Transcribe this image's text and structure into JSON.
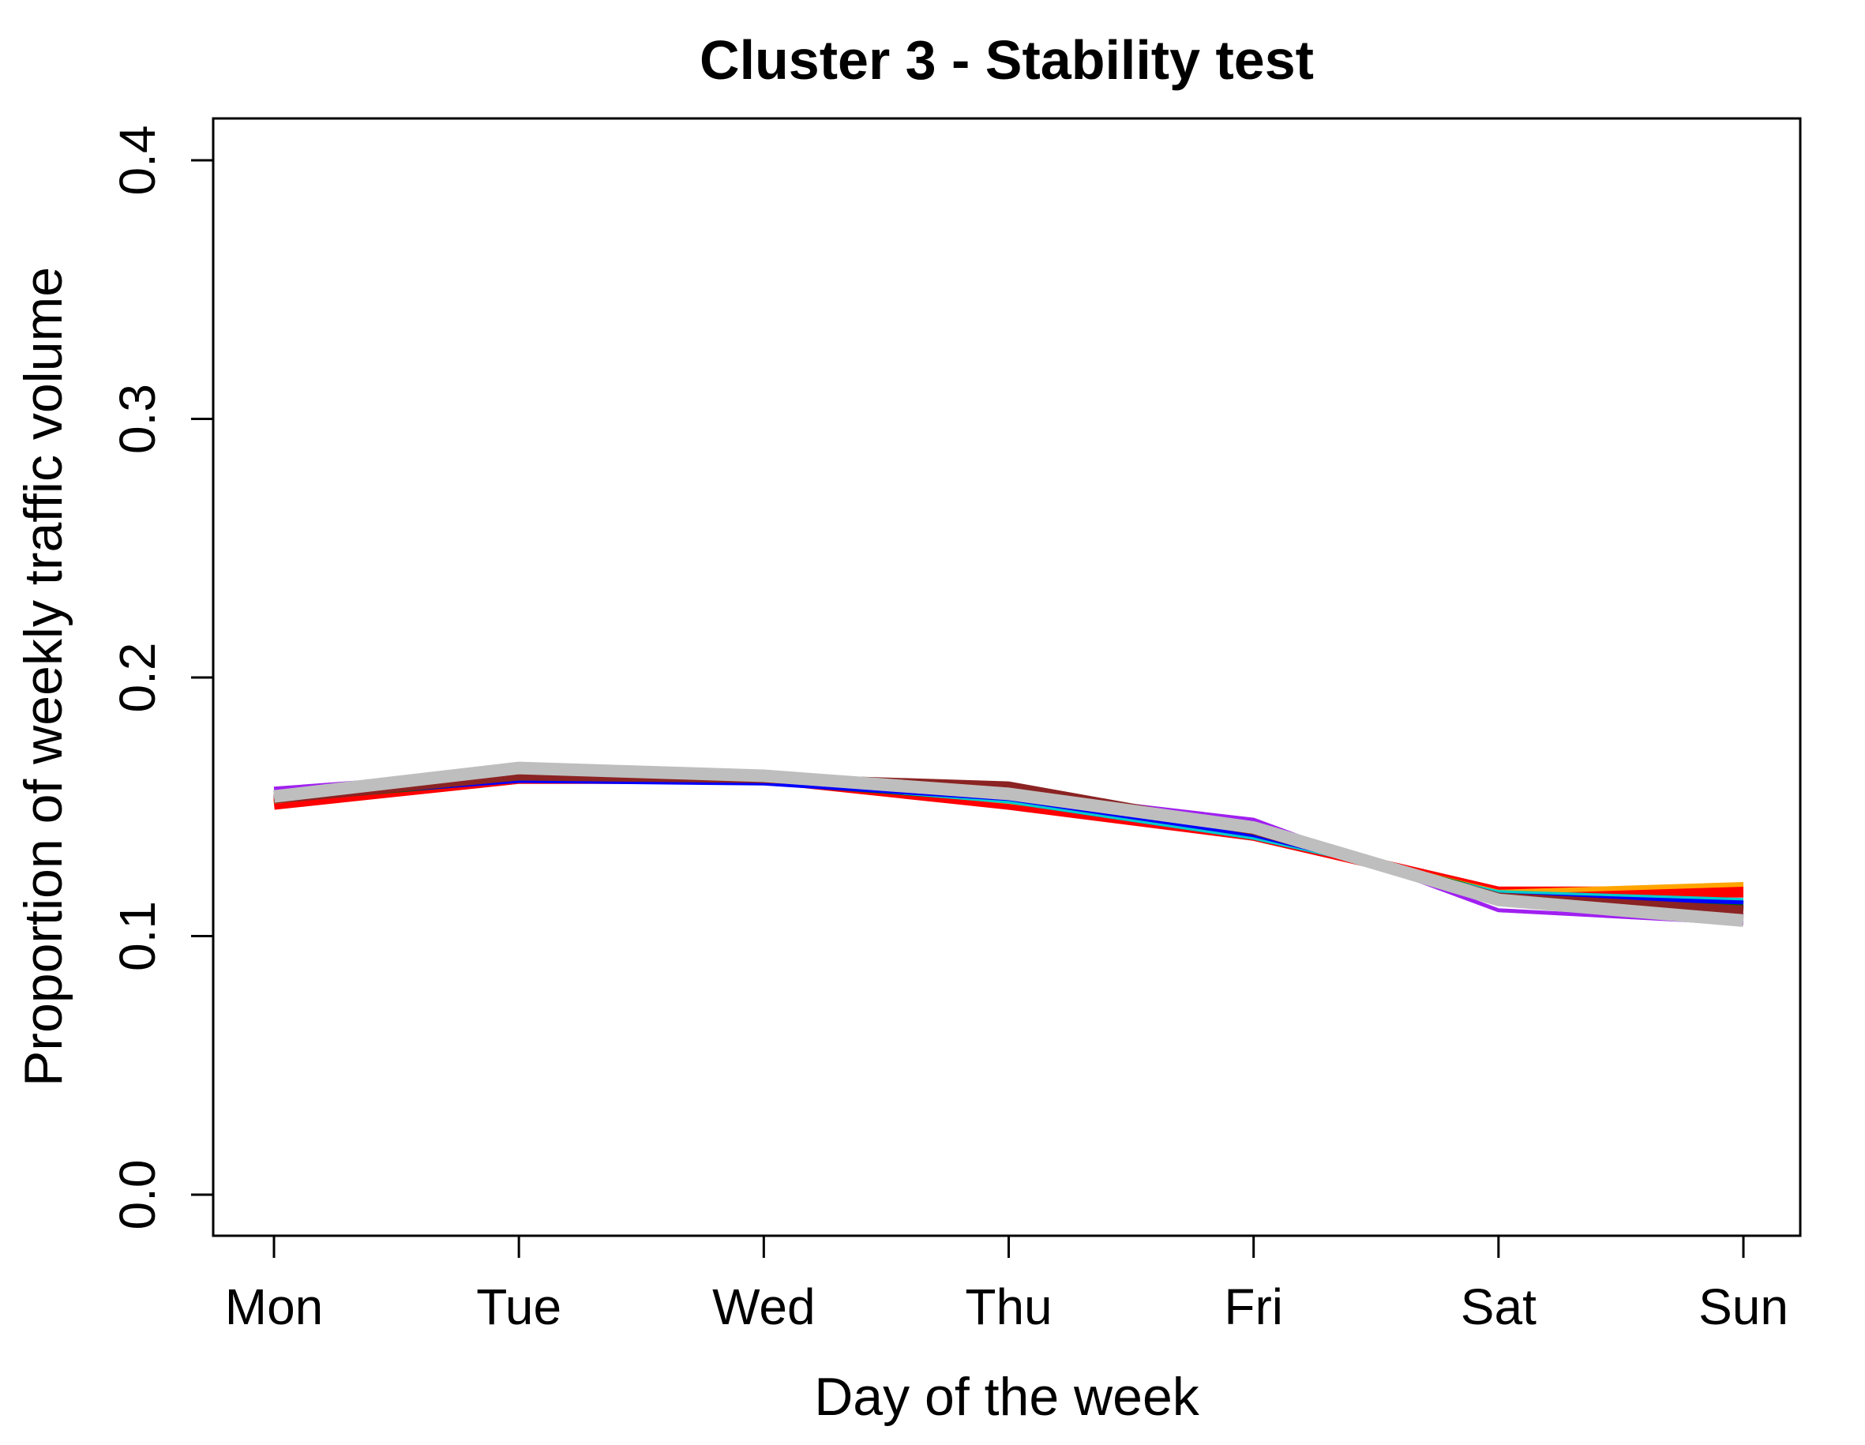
{
  "chart_data": {
    "type": "line",
    "title": "Cluster 3 - Stability test",
    "xlabel": "Day of the week",
    "ylabel": "Proportion of weekly traffic volume",
    "categories": [
      "Mon",
      "Tue",
      "Wed",
      "Thu",
      "Fri",
      "Sat",
      "Sun"
    ],
    "ylim": [
      0.0,
      0.4
    ],
    "yticks": [
      "0.0",
      "0.1",
      "0.2",
      "0.3",
      "0.4"
    ],
    "ytick_values": [
      0.0,
      0.1,
      0.2,
      0.3,
      0.4
    ],
    "grid": false,
    "legend": "none",
    "series": [
      {
        "color": "#ff0000",
        "values": [
          0.151,
          0.161,
          0.161,
          0.151,
          0.139,
          0.117,
          0.117
        ]
      },
      {
        "color": "#ffa500",
        "values": [
          0.152,
          0.162,
          0.161,
          0.152,
          0.14,
          0.117,
          0.12
        ]
      },
      {
        "color": "#006400",
        "values": [
          0.153,
          0.161,
          0.16,
          0.153,
          0.14,
          0.116,
          0.112
        ]
      },
      {
        "color": "#00cccc",
        "values": [
          0.154,
          0.16,
          0.16,
          0.152,
          0.138,
          0.117,
          0.114
        ]
      },
      {
        "color": "#0000ff",
        "values": [
          0.153,
          0.16,
          0.159,
          0.153,
          0.139,
          0.116,
          0.113
        ]
      },
      {
        "color": "#ff00ff",
        "values": [
          0.155,
          0.163,
          0.162,
          0.154,
          0.141,
          0.114,
          0.108
        ]
      },
      {
        "color": "#a020f0",
        "values": [
          0.157,
          0.164,
          0.162,
          0.156,
          0.145,
          0.11,
          0.105
        ]
      },
      {
        "color": "#8b2323",
        "values": [
          0.153,
          0.162,
          0.161,
          0.158,
          0.141,
          0.115,
          0.11
        ]
      },
      {
        "color": "#bebebe",
        "values": [
          0.154,
          0.165,
          0.162,
          0.155,
          0.142,
          0.114,
          0.106
        ]
      }
    ]
  }
}
